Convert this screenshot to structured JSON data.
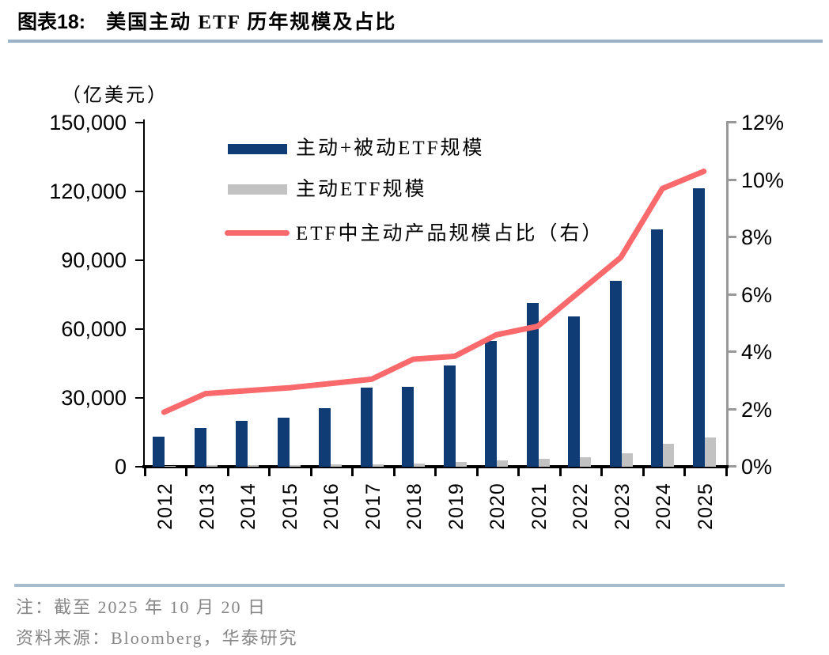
{
  "header": {
    "label": "图表18:",
    "title": "美国主动 ETF 历年规模及占比"
  },
  "chart_data": {
    "type": "bar",
    "title": "美国主动 ETF 历年规模及占比",
    "categories": [
      "2012",
      "2013",
      "2014",
      "2015",
      "2016",
      "2017",
      "2018",
      "2019",
      "2020",
      "2021",
      "2022",
      "2023",
      "2024",
      "2025"
    ],
    "series": [
      {
        "name": "主动+被动ETF规模",
        "type": "bar",
        "axis": "left",
        "color": "#0f3c74",
        "values": [
          13000,
          17000,
          20000,
          21500,
          25500,
          34500,
          35000,
          44000,
          55000,
          71500,
          65500,
          81000,
          103500,
          121500
        ]
      },
      {
        "name": "主动ETF规模",
        "type": "bar",
        "axis": "left",
        "color": "#c2c2c2",
        "values": [
          500,
          600,
          700,
          800,
          900,
          1200,
          1500,
          2000,
          2600,
          3500,
          4000,
          5900,
          10000,
          12700
        ]
      },
      {
        "name": "ETF中主动产品规模占比（右）",
        "type": "line",
        "axis": "right",
        "color": "#fa696c",
        "values": [
          1.9,
          2.55,
          2.65,
          2.75,
          2.9,
          3.05,
          3.75,
          3.85,
          4.6,
          4.9,
          6.1,
          7.3,
          9.7,
          10.3
        ]
      }
    ],
    "left_axis": {
      "unit": "（亿美元）",
      "min": 0,
      "max": 150000,
      "step": 30000,
      "tick_labels": [
        "0",
        "30,000",
        "60,000",
        "90,000",
        "120,000",
        "150,000"
      ]
    },
    "right_axis": {
      "min": 0,
      "max": 12,
      "step_percent": 2,
      "tick_labels": [
        "0%",
        "2%",
        "4%",
        "6%",
        "8%",
        "10%",
        "12%"
      ]
    },
    "legend_position": "inside-top-left",
    "grid": false
  },
  "footer": {
    "note": "注：截至 2025 年 10 月 20 日",
    "source": "资料来源：Bloomberg，华泰研究"
  },
  "colors": {
    "title_rule": "#9bb3c7",
    "footer_rule": "#a7bccd",
    "axis_black": "#000000",
    "right_axis_gray": "#999999",
    "note_text": "#868686"
  }
}
